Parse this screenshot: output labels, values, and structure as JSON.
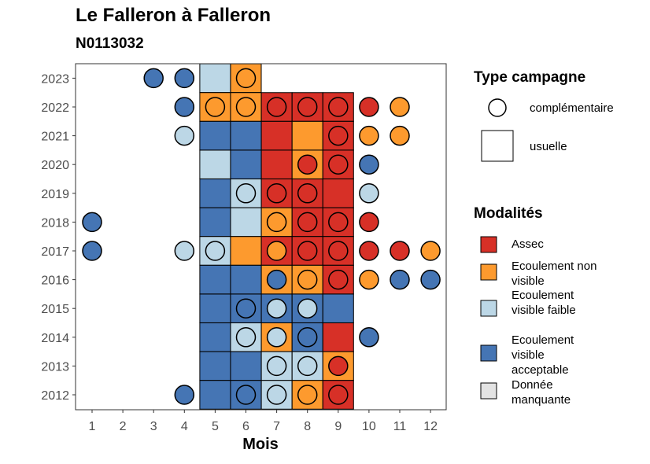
{
  "chart_data": {
    "type": "heatmap",
    "title": "Le Falleron à Falleron",
    "subtitle": "N0113032",
    "xlabel": "Mois",
    "ylabel": "",
    "x_categories": [
      "1",
      "2",
      "3",
      "4",
      "5",
      "6",
      "7",
      "8",
      "9",
      "10",
      "11",
      "12"
    ],
    "y_categories": [
      "2012",
      "2013",
      "2014",
      "2015",
      "2016",
      "2017",
      "2018",
      "2019",
      "2020",
      "2021",
      "2022",
      "2023"
    ],
    "grid": false,
    "legend_position": "right",
    "modalites": [
      {
        "key": "assec",
        "label": "Assec",
        "color": "#d73027"
      },
      {
        "key": "nonvis",
        "label": "Ecoulement non visible",
        "color": "#fd9a2e"
      },
      {
        "key": "faible",
        "label": "Ecoulement visible faible",
        "color": "#bcd7e6"
      },
      {
        "key": "accept",
        "label": "Ecoulement visible acceptable",
        "color": "#4575b4"
      },
      {
        "key": "manq",
        "label": "Donnée manquante",
        "color": "#e3e3e3"
      }
    ],
    "type_campagne": [
      {
        "key": "complementaire",
        "label": "complémentaire"
      },
      {
        "key": "usuelle",
        "label": "usuelle"
      }
    ],
    "usuelle": [
      {
        "year": 2023,
        "month": 5,
        "modalite": "faible"
      },
      {
        "year": 2023,
        "month": 6,
        "modalite": "nonvis"
      },
      {
        "year": 2022,
        "month": 5,
        "modalite": "nonvis"
      },
      {
        "year": 2022,
        "month": 6,
        "modalite": "nonvis"
      },
      {
        "year": 2022,
        "month": 7,
        "modalite": "assec"
      },
      {
        "year": 2022,
        "month": 8,
        "modalite": "assec"
      },
      {
        "year": 2022,
        "month": 9,
        "modalite": "assec"
      },
      {
        "year": 2021,
        "month": 5,
        "modalite": "accept"
      },
      {
        "year": 2021,
        "month": 6,
        "modalite": "accept"
      },
      {
        "year": 2021,
        "month": 7,
        "modalite": "assec"
      },
      {
        "year": 2021,
        "month": 8,
        "modalite": "nonvis"
      },
      {
        "year": 2021,
        "month": 9,
        "modalite": "assec"
      },
      {
        "year": 2020,
        "month": 5,
        "modalite": "faible"
      },
      {
        "year": 2020,
        "month": 6,
        "modalite": "accept"
      },
      {
        "year": 2020,
        "month": 7,
        "modalite": "assec"
      },
      {
        "year": 2020,
        "month": 8,
        "modalite": "nonvis"
      },
      {
        "year": 2020,
        "month": 9,
        "modalite": "assec"
      },
      {
        "year": 2019,
        "month": 5,
        "modalite": "accept"
      },
      {
        "year": 2019,
        "month": 6,
        "modalite": "faible"
      },
      {
        "year": 2019,
        "month": 7,
        "modalite": "assec"
      },
      {
        "year": 2019,
        "month": 8,
        "modalite": "assec"
      },
      {
        "year": 2019,
        "month": 9,
        "modalite": "assec"
      },
      {
        "year": 2018,
        "month": 5,
        "modalite": "accept"
      },
      {
        "year": 2018,
        "month": 6,
        "modalite": "faible"
      },
      {
        "year": 2018,
        "month": 7,
        "modalite": "nonvis"
      },
      {
        "year": 2018,
        "month": 8,
        "modalite": "assec"
      },
      {
        "year": 2018,
        "month": 9,
        "modalite": "assec"
      },
      {
        "year": 2017,
        "month": 5,
        "modalite": "faible"
      },
      {
        "year": 2017,
        "month": 6,
        "modalite": "nonvis"
      },
      {
        "year": 2017,
        "month": 7,
        "modalite": "assec"
      },
      {
        "year": 2017,
        "month": 8,
        "modalite": "assec"
      },
      {
        "year": 2017,
        "month": 9,
        "modalite": "assec"
      },
      {
        "year": 2016,
        "month": 5,
        "modalite": "accept"
      },
      {
        "year": 2016,
        "month": 6,
        "modalite": "accept"
      },
      {
        "year": 2016,
        "month": 7,
        "modalite": "nonvis"
      },
      {
        "year": 2016,
        "month": 8,
        "modalite": "nonvis"
      },
      {
        "year": 2016,
        "month": 9,
        "modalite": "assec"
      },
      {
        "year": 2015,
        "month": 5,
        "modalite": "accept"
      },
      {
        "year": 2015,
        "month": 6,
        "modalite": "accept"
      },
      {
        "year": 2015,
        "month": 7,
        "modalite": "accept"
      },
      {
        "year": 2015,
        "month": 8,
        "modalite": "accept"
      },
      {
        "year": 2015,
        "month": 9,
        "modalite": "accept"
      },
      {
        "year": 2014,
        "month": 5,
        "modalite": "accept"
      },
      {
        "year": 2014,
        "month": 6,
        "modalite": "faible"
      },
      {
        "year": 2014,
        "month": 7,
        "modalite": "nonvis"
      },
      {
        "year": 2014,
        "month": 8,
        "modalite": "accept"
      },
      {
        "year": 2014,
        "month": 9,
        "modalite": "assec"
      },
      {
        "year": 2013,
        "month": 5,
        "modalite": "accept"
      },
      {
        "year": 2013,
        "month": 6,
        "modalite": "accept"
      },
      {
        "year": 2013,
        "month": 7,
        "modalite": "faible"
      },
      {
        "year": 2013,
        "month": 8,
        "modalite": "faible"
      },
      {
        "year": 2013,
        "month": 9,
        "modalite": "nonvis"
      },
      {
        "year": 2012,
        "month": 5,
        "modalite": "accept"
      },
      {
        "year": 2012,
        "month": 6,
        "modalite": "accept"
      },
      {
        "year": 2012,
        "month": 7,
        "modalite": "faible"
      },
      {
        "year": 2012,
        "month": 8,
        "modalite": "nonvis"
      },
      {
        "year": 2012,
        "month": 9,
        "modalite": "assec"
      }
    ],
    "complementaire": [
      {
        "year": 2023,
        "month": 3,
        "modalite": "accept"
      },
      {
        "year": 2023,
        "month": 4,
        "modalite": "accept"
      },
      {
        "year": 2023,
        "month": 6,
        "modalite": "nonvis"
      },
      {
        "year": 2022,
        "month": 4,
        "modalite": "accept"
      },
      {
        "year": 2022,
        "month": 5,
        "modalite": "nonvis"
      },
      {
        "year": 2022,
        "month": 6,
        "modalite": "nonvis"
      },
      {
        "year": 2022,
        "month": 7,
        "modalite": "assec"
      },
      {
        "year": 2022,
        "month": 8,
        "modalite": "assec"
      },
      {
        "year": 2022,
        "month": 9,
        "modalite": "assec"
      },
      {
        "year": 2022,
        "month": 10,
        "modalite": "assec"
      },
      {
        "year": 2022,
        "month": 11,
        "modalite": "nonvis"
      },
      {
        "year": 2021,
        "month": 4,
        "modalite": "faible"
      },
      {
        "year": 2021,
        "month": 9,
        "modalite": "assec"
      },
      {
        "year": 2021,
        "month": 10,
        "modalite": "nonvis"
      },
      {
        "year": 2021,
        "month": 11,
        "modalite": "nonvis"
      },
      {
        "year": 2020,
        "month": 8,
        "modalite": "assec"
      },
      {
        "year": 2020,
        "month": 9,
        "modalite": "assec"
      },
      {
        "year": 2020,
        "month": 10,
        "modalite": "accept"
      },
      {
        "year": 2019,
        "month": 6,
        "modalite": "faible"
      },
      {
        "year": 2019,
        "month": 7,
        "modalite": "assec"
      },
      {
        "year": 2019,
        "month": 8,
        "modalite": "assec"
      },
      {
        "year": 2019,
        "month": 10,
        "modalite": "faible"
      },
      {
        "year": 2018,
        "month": 1,
        "modalite": "accept"
      },
      {
        "year": 2018,
        "month": 7,
        "modalite": "nonvis"
      },
      {
        "year": 2018,
        "month": 8,
        "modalite": "assec"
      },
      {
        "year": 2018,
        "month": 9,
        "modalite": "assec"
      },
      {
        "year": 2018,
        "month": 10,
        "modalite": "assec"
      },
      {
        "year": 2017,
        "month": 1,
        "modalite": "accept"
      },
      {
        "year": 2017,
        "month": 4,
        "modalite": "faible"
      },
      {
        "year": 2017,
        "month": 5,
        "modalite": "faible"
      },
      {
        "year": 2017,
        "month": 7,
        "modalite": "nonvis"
      },
      {
        "year": 2017,
        "month": 8,
        "modalite": "assec"
      },
      {
        "year": 2017,
        "month": 9,
        "modalite": "assec"
      },
      {
        "year": 2017,
        "month": 10,
        "modalite": "assec"
      },
      {
        "year": 2017,
        "month": 11,
        "modalite": "assec"
      },
      {
        "year": 2017,
        "month": 12,
        "modalite": "nonvis"
      },
      {
        "year": 2016,
        "month": 7,
        "modalite": "accept"
      },
      {
        "year": 2016,
        "month": 8,
        "modalite": "nonvis"
      },
      {
        "year": 2016,
        "month": 9,
        "modalite": "assec"
      },
      {
        "year": 2016,
        "month": 10,
        "modalite": "nonvis"
      },
      {
        "year": 2016,
        "month": 11,
        "modalite": "accept"
      },
      {
        "year": 2016,
        "month": 12,
        "modalite": "accept"
      },
      {
        "year": 2015,
        "month": 6,
        "modalite": "accept"
      },
      {
        "year": 2015,
        "month": 7,
        "modalite": "faible"
      },
      {
        "year": 2015,
        "month": 8,
        "modalite": "faible"
      },
      {
        "year": 2014,
        "month": 6,
        "modalite": "faible"
      },
      {
        "year": 2014,
        "month": 7,
        "modalite": "faible"
      },
      {
        "year": 2014,
        "month": 8,
        "modalite": "accept"
      },
      {
        "year": 2014,
        "month": 10,
        "modalite": "accept"
      },
      {
        "year": 2013,
        "month": 7,
        "modalite": "faible"
      },
      {
        "year": 2013,
        "month": 8,
        "modalite": "faible"
      },
      {
        "year": 2013,
        "month": 9,
        "modalite": "assec"
      },
      {
        "year": 2012,
        "month": 4,
        "modalite": "accept"
      },
      {
        "year": 2012,
        "month": 6,
        "modalite": "accept"
      },
      {
        "year": 2012,
        "month": 7,
        "modalite": "faible"
      },
      {
        "year": 2012,
        "month": 8,
        "modalite": "nonvis"
      },
      {
        "year": 2012,
        "month": 9,
        "modalite": "assec"
      }
    ]
  }
}
